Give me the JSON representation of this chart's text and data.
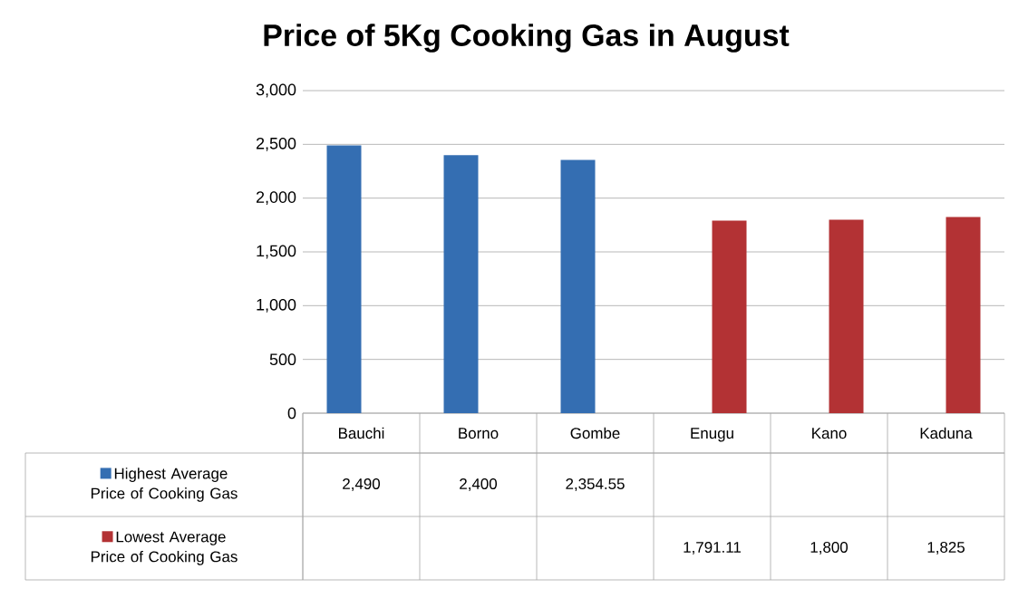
{
  "chart_data": {
    "type": "bar",
    "title": "Price of 5Kg Cooking Gas in August",
    "categories": [
      "Bauchi",
      "Borno",
      "Gombe",
      "Enugu",
      "Kano",
      "Kaduna"
    ],
    "series": [
      {
        "name": "Highest Average Price of Cooking Gas",
        "color": "#346eb2",
        "values": [
          2490,
          2400,
          2354.55,
          null,
          null,
          null
        ],
        "value_labels": [
          "2,490",
          "2,400",
          "2,354.55",
          null,
          null,
          null
        ]
      },
      {
        "name": "Lowest Average Price of Cooking Gas",
        "color": "#b33234",
        "values": [
          null,
          null,
          null,
          1791.11,
          1800,
          1825
        ],
        "value_labels": [
          null,
          null,
          null,
          "1,791.11",
          "1,800",
          "1,825"
        ]
      }
    ],
    "ylim": [
      0,
      3000
    ],
    "yticks": [
      0,
      500,
      {
        "value": 1000,
        "label": "1,000"
      },
      {
        "value": 1500,
        "label": "1,500"
      },
      {
        "value": 2000,
        "label": "2,000"
      },
      {
        "value": 2500,
        "label": "2,500"
      },
      {
        "value": 3000,
        "label": "3,000"
      }
    ],
    "grid": "y",
    "legend": "bottom"
  }
}
